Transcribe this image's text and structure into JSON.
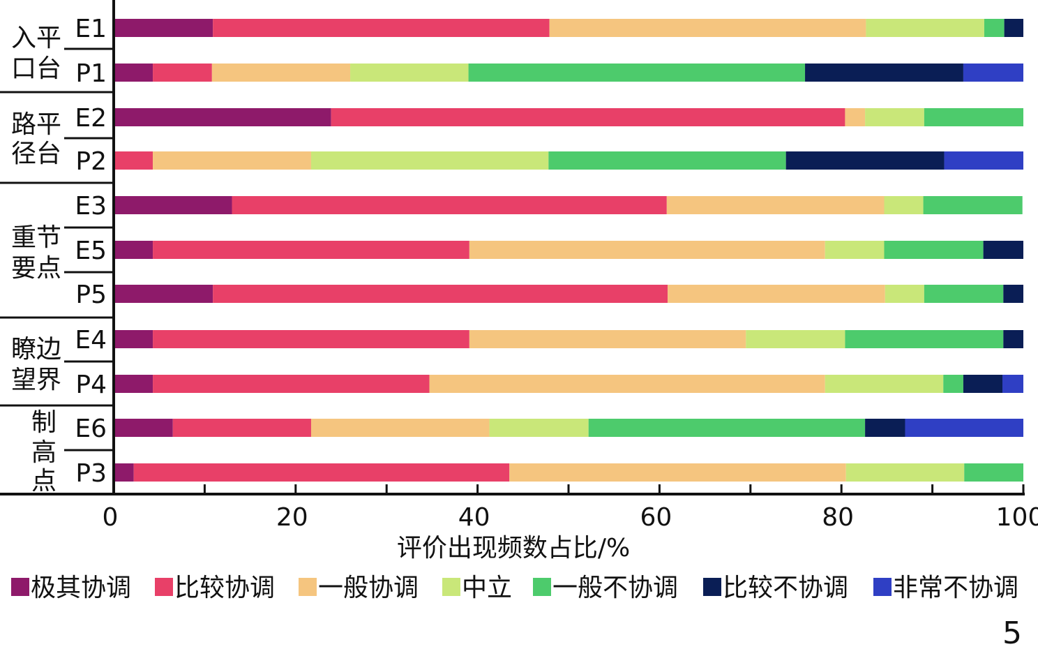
{
  "chart_data": {
    "type": "bar",
    "orientation": "horizontal",
    "stacked": true,
    "xlabel": "评价出现频数占比/%",
    "xlim": [
      0,
      100
    ],
    "xticks": [
      "0",
      "20",
      "40",
      "60",
      "80",
      "100"
    ],
    "panel_label": "5",
    "legend_position": "bottom",
    "grid": false,
    "groups": [
      {
        "label_top": "入平",
        "label_bottom": "口台",
        "categories": [
          "E1",
          "P1"
        ]
      },
      {
        "label_top": "路平",
        "label_bottom": "径台",
        "categories": [
          "E2",
          "P2"
        ]
      },
      {
        "label_top": "重节",
        "label_bottom": "要点",
        "categories": [
          "E3",
          "E5",
          "P5"
        ]
      },
      {
        "label_top": "瞭边",
        "label_bottom": "望界",
        "categories": [
          "E4",
          "P4"
        ]
      },
      {
        "label_lines": [
          "制",
          "高",
          "点"
        ],
        "categories": [
          "E6",
          "P3"
        ]
      }
    ],
    "categories": [
      "E1",
      "P1",
      "E2",
      "P2",
      "E3",
      "E5",
      "P5",
      "E4",
      "P4",
      "E6",
      "P3"
    ],
    "series": [
      {
        "name": "极其协调",
        "color": "#8E1A6A",
        "values": [
          10.9,
          4.3,
          23.9,
          0,
          13.0,
          4.3,
          10.9,
          4.3,
          4.3,
          6.5,
          2.2
        ]
      },
      {
        "name": "比较协调",
        "color": "#E84068",
        "values": [
          37.0,
          6.5,
          56.5,
          4.3,
          47.8,
          34.8,
          50.0,
          34.8,
          30.4,
          15.2,
          41.3
        ]
      },
      {
        "name": "一般协调",
        "color": "#F5C57F",
        "values": [
          34.8,
          15.2,
          2.2,
          17.4,
          23.9,
          39.1,
          23.9,
          30.4,
          43.5,
          19.6,
          37.0
        ]
      },
      {
        "name": "中立",
        "color": "#C9E779",
        "values": [
          13.0,
          13.0,
          6.5,
          26.1,
          4.3,
          6.5,
          4.3,
          10.9,
          13.0,
          10.9,
          13.0
        ]
      },
      {
        "name": "一般不协调",
        "color": "#4DCB6C",
        "values": [
          2.2,
          37.0,
          10.9,
          26.1,
          10.9,
          10.9,
          8.7,
          17.4,
          2.2,
          30.4,
          6.5
        ]
      },
      {
        "name": "比较不协调",
        "color": "#0A1E55",
        "values": [
          2.1,
          17.4,
          0,
          17.4,
          0,
          4.4,
          2.2,
          2.2,
          4.3,
          4.4,
          0
        ]
      },
      {
        "name": "非常不协调",
        "color": "#2F3FC4",
        "values": [
          0,
          6.6,
          0,
          8.7,
          0,
          0,
          0,
          0,
          2.3,
          13.0,
          0
        ]
      }
    ]
  }
}
